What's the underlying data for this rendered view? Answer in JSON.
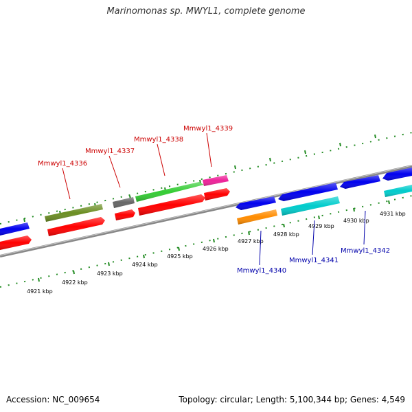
{
  "title": "Marinomonas sp. MWYL1, complete genome",
  "accession": "Accession: NC_009654",
  "stats": "Topology: circular; Length: 5,100,344 bp; Genes: 4,549",
  "colors": {
    "backbone": "#888888",
    "forward_label": "#cc0000",
    "reverse_label": "#0000aa",
    "tick": "#228b22"
  },
  "axis_ticks": [
    {
      "label": "4921 kbp"
    },
    {
      "label": "4922 kbp"
    },
    {
      "label": "4923 kbp"
    },
    {
      "label": "4924 kbp"
    },
    {
      "label": "4925 kbp"
    },
    {
      "label": "4926 kbp"
    },
    {
      "label": "4927 kbp"
    },
    {
      "label": "4928 kbp"
    },
    {
      "label": "4929 kbp"
    },
    {
      "label": "4930 kbp"
    },
    {
      "label": "4931 kbp"
    }
  ],
  "forward_labels": [
    "Mmwyl1_4336",
    "Mmwyl1_4337",
    "Mmwyl1_4338",
    "Mmwyl1_4339"
  ],
  "reverse_labels": [
    "Mmwyl1_4340",
    "Mmwyl1_4341",
    "Mmwyl1_4342"
  ]
}
